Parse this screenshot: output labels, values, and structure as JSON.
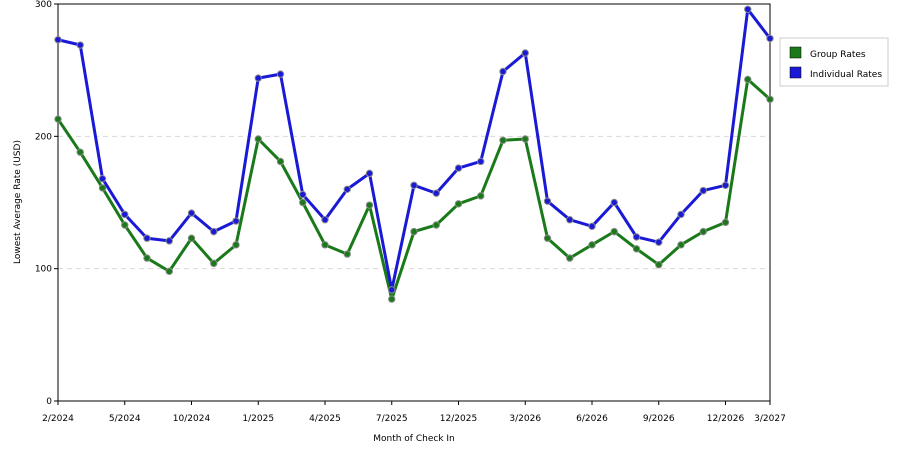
{
  "chart_data": {
    "type": "line",
    "title": "",
    "xlabel": "Month of Check In",
    "ylabel": "Lowest Average Rate (USD)",
    "ylim": [
      0,
      300
    ],
    "yticks": [
      "0",
      "100",
      "200",
      "300"
    ],
    "grid": "horizontal dashed",
    "legend_position": "right",
    "x_tick_labels": [
      "2/2024",
      "5/2024",
      "10/2024",
      "1/2025",
      "4/2025",
      "7/2025",
      "12/2025",
      "3/2026",
      "6/2026",
      "9/2026",
      "12/2026",
      "3/2027"
    ],
    "x_tick_months": [
      0,
      3,
      6,
      9,
      12,
      15,
      18,
      21,
      24,
      27,
      30,
      32
    ],
    "series": [
      {
        "name": "Group Rates",
        "color": "#1a7a1a",
        "values": [
          213,
          188,
          161,
          133,
          108,
          98,
          123,
          104,
          118,
          198,
          181,
          150,
          118,
          111,
          148,
          77,
          128,
          133,
          149,
          155,
          197,
          198,
          123,
          108,
          118,
          128,
          115,
          103,
          118,
          128,
          135,
          243,
          228
        ]
      },
      {
        "name": "Individual Rates",
        "color": "#1a1ad6",
        "values": [
          273,
          269,
          168,
          141,
          123,
          121,
          142,
          128,
          136,
          244,
          247,
          156,
          137,
          160,
          172,
          84,
          163,
          157,
          176,
          181,
          249,
          263,
          151,
          137,
          132,
          150,
          124,
          120,
          141,
          159,
          163,
          296,
          274
        ]
      }
    ]
  }
}
